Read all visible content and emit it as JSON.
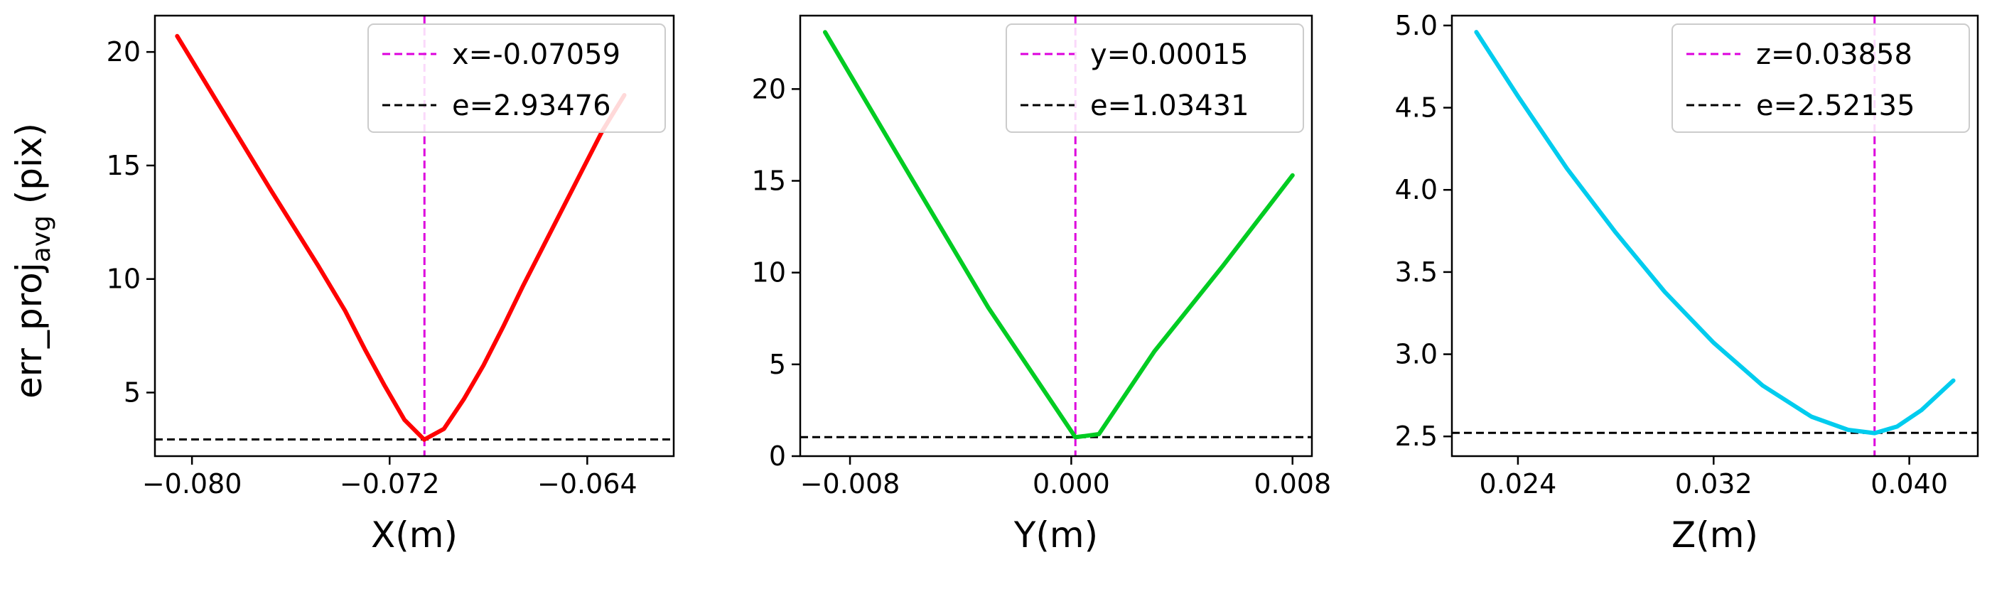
{
  "figure": {
    "ylabel_main": "err_proj",
    "ylabel_sub": "avg",
    "ylabel_unit": " (pix)"
  },
  "chart_data": [
    {
      "type": "line",
      "title": "",
      "xlabel": "X(m)",
      "ylabel": "err_proj_avg (pix)",
      "xlim": [
        -0.0815,
        -0.0605
      ],
      "ylim": [
        2.2,
        21.6
      ],
      "xticks": [
        -0.08,
        -0.072,
        -0.064
      ],
      "xtick_labels": [
        "−0.080",
        "−0.072",
        "−0.064"
      ],
      "yticks": [
        5,
        10,
        15,
        20
      ],
      "ytick_labels": [
        "5",
        "10",
        "15",
        "20"
      ],
      "grid": false,
      "legend_position": "top-right",
      "series": [
        {
          "color": "#ff0000",
          "x": [
            -0.0806,
            -0.0787,
            -0.0768,
            -0.0749,
            -0.0738,
            -0.073,
            -0.0722,
            -0.0714,
            -0.0706,
            -0.0698,
            -0.069,
            -0.0682,
            -0.0674,
            -0.0666,
            -0.0658,
            -0.065,
            -0.0642,
            -0.0634,
            -0.0625
          ],
          "y": [
            20.7,
            17.3,
            13.9,
            10.6,
            8.6,
            6.9,
            5.3,
            3.8,
            2.93,
            3.4,
            4.7,
            6.2,
            7.9,
            9.7,
            11.4,
            13.1,
            14.8,
            16.5,
            18.1
          ]
        }
      ],
      "reference_lines": [
        {
          "orientation": "vertical",
          "value": -0.07059,
          "color": "#dd00dd",
          "label": "x=-0.07059"
        },
        {
          "orientation": "horizontal",
          "value": 2.93476,
          "color": "#000000",
          "label": "e=2.93476"
        }
      ]
    },
    {
      "type": "line",
      "title": "",
      "xlabel": "Y(m)",
      "ylabel": "",
      "xlim": [
        -0.0098,
        0.0087
      ],
      "ylim": [
        0.0,
        24.0
      ],
      "xticks": [
        -0.008,
        0.0,
        0.008
      ],
      "xtick_labels": [
        "−0.008",
        "0.000",
        "0.008"
      ],
      "yticks": [
        0,
        5,
        10,
        15,
        20
      ],
      "ytick_labels": [
        "0",
        "5",
        "10",
        "15",
        "20"
      ],
      "grid": false,
      "legend_position": "top-right",
      "series": [
        {
          "color": "#00cc22",
          "x": [
            -0.0089,
            -0.006,
            -0.003,
            0.00015,
            0.001,
            0.003,
            0.0055,
            0.008
          ],
          "y": [
            23.1,
            15.7,
            8.1,
            1.03,
            1.2,
            5.7,
            10.4,
            15.3
          ]
        }
      ],
      "reference_lines": [
        {
          "orientation": "vertical",
          "value": 0.00015,
          "color": "#dd00dd",
          "label": "y=0.00015"
        },
        {
          "orientation": "horizontal",
          "value": 1.03431,
          "color": "#000000",
          "label": "e=1.03431"
        }
      ]
    },
    {
      "type": "line",
      "title": "",
      "xlabel": "Z(m)",
      "ylabel": "",
      "xlim": [
        0.0213,
        0.0428
      ],
      "ylim": [
        2.38,
        5.06
      ],
      "xticks": [
        0.024,
        0.032,
        0.04
      ],
      "xtick_labels": [
        "0.024",
        "0.032",
        "0.040"
      ],
      "yticks": [
        2.5,
        3.0,
        3.5,
        4.0,
        4.5,
        5.0
      ],
      "ytick_labels": [
        "2.5",
        "3.0",
        "3.5",
        "4.0",
        "4.5",
        "5.0"
      ],
      "grid": false,
      "legend_position": "top-right",
      "series": [
        {
          "color": "#00ccee",
          "x": [
            0.0223,
            0.024,
            0.026,
            0.028,
            0.03,
            0.032,
            0.034,
            0.036,
            0.0375,
            0.03858,
            0.0395,
            0.0405,
            0.0418
          ],
          "y": [
            4.96,
            4.57,
            4.13,
            3.74,
            3.38,
            3.07,
            2.81,
            2.62,
            2.54,
            2.52,
            2.56,
            2.66,
            2.84
          ]
        }
      ],
      "reference_lines": [
        {
          "orientation": "vertical",
          "value": 0.03858,
          "color": "#dd00dd",
          "label": "z=0.03858"
        },
        {
          "orientation": "horizontal",
          "value": 2.52135,
          "color": "#000000",
          "label": "e=2.52135"
        }
      ]
    }
  ]
}
